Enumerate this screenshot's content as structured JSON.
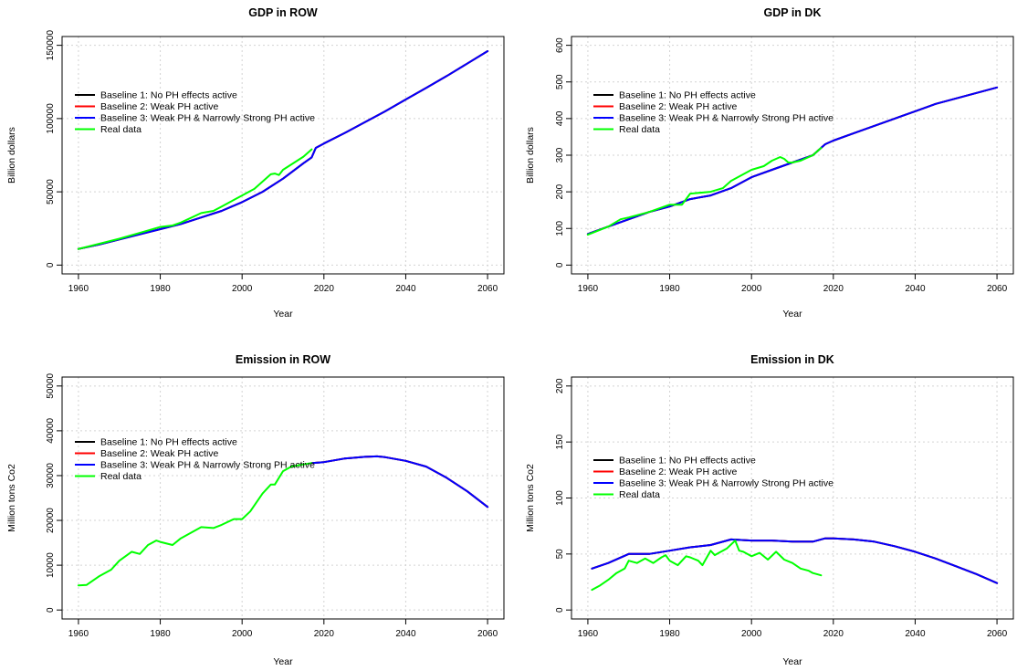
{
  "legend": {
    "entries": [
      {
        "label": "Baseline 1: No PH effects active",
        "color": "#000000"
      },
      {
        "label": "Baseline 2: Weak PH active",
        "color": "#ff0000"
      },
      {
        "label": "Baseline 3: Weak PH & Narrowly Strong PH active",
        "color": "#0000ff"
      },
      {
        "label": "Real data",
        "color": "#00ff00"
      }
    ]
  },
  "chart_data": [
    {
      "type": "line",
      "title": "GDP in ROW",
      "xlabel": "Year",
      "ylabel": "Billion dollars",
      "xlim": [
        1960,
        2060
      ],
      "ylim": [
        0,
        150000
      ],
      "xticks": [
        1960,
        1980,
        2000,
        2020,
        2040,
        2060
      ],
      "yticks": [
        0,
        50000,
        100000,
        150000
      ],
      "grid": true,
      "legend_position": "top-left",
      "series": [
        {
          "name": "Baseline 1: No PH effects active",
          "color": "#000000",
          "x": [
            1960,
            1965,
            1970,
            1975,
            1980,
            1985,
            1990,
            1995,
            2000,
            2005,
            2010,
            2015,
            2017,
            2018,
            2020,
            2025,
            2030,
            2035,
            2040,
            2045,
            2050,
            2055,
            2060
          ],
          "y": [
            11000,
            14000,
            17500,
            21000,
            24500,
            28000,
            32500,
            37000,
            43000,
            50000,
            59000,
            69500,
            73500,
            80000,
            83000,
            90000,
            97500,
            105000,
            113000,
            121000,
            129000,
            137500,
            146000
          ]
        },
        {
          "name": "Baseline 2: Weak PH active",
          "color": "#ff0000",
          "x": [
            1960,
            1965,
            1970,
            1975,
            1980,
            1985,
            1990,
            1995,
            2000,
            2005,
            2010,
            2015,
            2017,
            2018,
            2020,
            2025,
            2030,
            2035,
            2040,
            2045,
            2050,
            2055,
            2060
          ],
          "y": [
            11000,
            14000,
            17500,
            21000,
            24500,
            28000,
            32500,
            37000,
            43000,
            50000,
            59000,
            69500,
            73500,
            80000,
            83000,
            90000,
            97500,
            105000,
            113000,
            121000,
            129000,
            137500,
            146000
          ]
        },
        {
          "name": "Baseline 3: Weak PH & Narrowly Strong PH active",
          "color": "#0000ff",
          "x": [
            1960,
            1965,
            1970,
            1975,
            1980,
            1985,
            1990,
            1995,
            2000,
            2005,
            2010,
            2015,
            2017,
            2018,
            2020,
            2025,
            2030,
            2035,
            2040,
            2045,
            2050,
            2055,
            2060
          ],
          "y": [
            11000,
            14000,
            17500,
            21000,
            24500,
            28000,
            32500,
            37000,
            43000,
            50000,
            59000,
            69500,
            73500,
            80000,
            83000,
            90000,
            97500,
            105000,
            113000,
            121000,
            129000,
            137500,
            146000
          ]
        },
        {
          "name": "Real data",
          "color": "#00ff00",
          "x": [
            1960,
            1965,
            1970,
            1975,
            1980,
            1983,
            1985,
            1990,
            1993,
            1995,
            2000,
            2003,
            2005,
            2007,
            2008,
            2009,
            2010,
            2015,
            2017
          ],
          "y": [
            11000,
            14500,
            18000,
            22000,
            26000,
            27000,
            29000,
            35500,
            37000,
            40000,
            47500,
            52000,
            57000,
            62000,
            62500,
            61500,
            65000,
            74000,
            79000
          ]
        }
      ]
    },
    {
      "type": "line",
      "title": "GDP in DK",
      "xlabel": "Year",
      "ylabel": "Billion dollars",
      "xlim": [
        1960,
        2060
      ],
      "ylim": [
        0,
        600
      ],
      "xticks": [
        1960,
        1980,
        2000,
        2020,
        2040,
        2060
      ],
      "yticks": [
        0,
        100,
        200,
        300,
        400,
        500,
        600
      ],
      "grid": true,
      "legend_position": "top-left",
      "series": [
        {
          "name": "Baseline 1: No PH effects active",
          "color": "#000000",
          "x": [
            1960,
            1965,
            1970,
            1975,
            1980,
            1985,
            1990,
            1995,
            2000,
            2005,
            2010,
            2015,
            2018,
            2020,
            2025,
            2030,
            2035,
            2040,
            2045,
            2050,
            2055,
            2060
          ],
          "y": [
            85,
            105,
            125,
            145,
            160,
            180,
            190,
            210,
            240,
            260,
            280,
            300,
            330,
            340,
            360,
            380,
            400,
            420,
            440,
            455,
            470,
            485
          ]
        },
        {
          "name": "Baseline 2: Weak PH active",
          "color": "#ff0000",
          "x": [
            1960,
            1965,
            1970,
            1975,
            1980,
            1985,
            1990,
            1995,
            2000,
            2005,
            2010,
            2015,
            2018,
            2020,
            2025,
            2030,
            2035,
            2040,
            2045,
            2050,
            2055,
            2060
          ],
          "y": [
            85,
            105,
            125,
            145,
            160,
            180,
            190,
            210,
            240,
            260,
            280,
            300,
            330,
            340,
            360,
            380,
            400,
            420,
            440,
            455,
            470,
            485
          ]
        },
        {
          "name": "Baseline 3: Weak PH & Narrowly Strong PH active",
          "color": "#0000ff",
          "x": [
            1960,
            1965,
            1970,
            1975,
            1980,
            1985,
            1990,
            1995,
            2000,
            2005,
            2010,
            2015,
            2018,
            2020,
            2025,
            2030,
            2035,
            2040,
            2045,
            2050,
            2055,
            2060
          ],
          "y": [
            85,
            105,
            125,
            145,
            160,
            180,
            190,
            210,
            240,
            260,
            280,
            300,
            330,
            340,
            360,
            380,
            400,
            420,
            440,
            455,
            470,
            485
          ]
        },
        {
          "name": "Real data",
          "color": "#00ff00",
          "x": [
            1960,
            1965,
            1968,
            1970,
            1975,
            1980,
            1983,
            1985,
            1990,
            1993,
            1995,
            2000,
            2003,
            2005,
            2007,
            2008,
            2009,
            2010,
            2012,
            2015,
            2017
          ],
          "y": [
            83,
            105,
            125,
            130,
            145,
            165,
            165,
            195,
            200,
            210,
            230,
            260,
            270,
            285,
            295,
            290,
            280,
            280,
            285,
            300,
            320
          ]
        }
      ]
    },
    {
      "type": "line",
      "title": "Emission in ROW",
      "xlabel": "Year",
      "ylabel": "Million tons Co2",
      "xlim": [
        1960,
        2060
      ],
      "ylim": [
        0,
        50000
      ],
      "xticks": [
        1960,
        1980,
        2000,
        2020,
        2040,
        2060
      ],
      "yticks": [
        0,
        10000,
        20000,
        30000,
        40000,
        50000
      ],
      "grid": true,
      "legend_position": "top-left",
      "series": [
        {
          "name": "Baseline 1: No PH effects active",
          "color": "#000000",
          "x": [
            2017,
            2020,
            2025,
            2030,
            2033,
            2035,
            2040,
            2045,
            2050,
            2055,
            2060
          ],
          "y": [
            32800,
            33000,
            33800,
            34200,
            34300,
            34100,
            33300,
            32000,
            29500,
            26500,
            23000
          ]
        },
        {
          "name": "Baseline 2: Weak PH active",
          "color": "#ff0000",
          "x": [
            2017,
            2020,
            2025,
            2030,
            2033,
            2035,
            2040,
            2045,
            2050,
            2055,
            2060
          ],
          "y": [
            32800,
            33000,
            33800,
            34200,
            34300,
            34100,
            33300,
            32000,
            29500,
            26500,
            23000
          ]
        },
        {
          "name": "Baseline 3: Weak PH & Narrowly Strong PH active",
          "color": "#0000ff",
          "x": [
            2017,
            2020,
            2025,
            2030,
            2033,
            2035,
            2040,
            2045,
            2050,
            2055,
            2060
          ],
          "y": [
            32800,
            33000,
            33800,
            34200,
            34300,
            34100,
            33300,
            32000,
            29500,
            26500,
            23000
          ]
        },
        {
          "name": "Real data",
          "color": "#00ff00",
          "x": [
            1960,
            1962,
            1965,
            1968,
            1970,
            1973,
            1975,
            1977,
            1979,
            1980,
            1983,
            1985,
            1990,
            1993,
            1995,
            1998,
            2000,
            2002,
            2005,
            2007,
            2008,
            2010,
            2012,
            2015,
            2017
          ],
          "y": [
            5500,
            5600,
            7500,
            9000,
            11000,
            13000,
            12500,
            14500,
            15500,
            15200,
            14500,
            16000,
            18500,
            18300,
            19000,
            20300,
            20300,
            22000,
            26000,
            28000,
            28000,
            31000,
            32000,
            32500,
            32800
          ]
        }
      ]
    },
    {
      "type": "line",
      "title": "Emission in DK",
      "xlabel": "Year",
      "ylabel": "Million tons Co2",
      "xlim": [
        1960,
        2060
      ],
      "ylim": [
        0,
        200
      ],
      "xticks": [
        1960,
        1980,
        2000,
        2020,
        2040,
        2060
      ],
      "yticks": [
        0,
        50,
        100,
        150,
        200
      ],
      "grid": true,
      "legend_position": "top-left",
      "series": [
        {
          "name": "Baseline 1: No PH effects active",
          "color": "#000000",
          "x": [
            1961,
            1965,
            1970,
            1975,
            1980,
            1985,
            1990,
            1995,
            2000,
            2005,
            2010,
            2015,
            2018,
            2020,
            2025,
            2030,
            2035,
            2040,
            2045,
            2050,
            2055,
            2060
          ],
          "y": [
            37,
            42,
            50,
            50,
            53,
            56,
            58,
            63,
            62,
            62,
            61,
            61,
            64,
            64,
            63,
            61,
            57,
            52,
            46,
            39,
            32,
            24
          ]
        },
        {
          "name": "Baseline 2: Weak PH active",
          "color": "#ff0000",
          "x": [
            1961,
            1965,
            1970,
            1975,
            1980,
            1985,
            1990,
            1995,
            2000,
            2005,
            2010,
            2015,
            2018,
            2020,
            2025,
            2030,
            2035,
            2040,
            2045,
            2050,
            2055,
            2060
          ],
          "y": [
            37,
            42,
            50,
            50,
            53,
            56,
            58,
            63,
            62,
            62,
            61,
            61,
            64,
            64,
            63,
            61,
            57,
            52,
            46,
            39,
            32,
            24
          ]
        },
        {
          "name": "Baseline 3: Weak PH & Narrowly Strong PH active",
          "color": "#0000ff",
          "x": [
            1961,
            1965,
            1970,
            1975,
            1980,
            1985,
            1990,
            1995,
            2000,
            2005,
            2010,
            2015,
            2018,
            2020,
            2025,
            2030,
            2035,
            2040,
            2045,
            2050,
            2055,
            2060
          ],
          "y": [
            37,
            42,
            50,
            50,
            53,
            56,
            58,
            63,
            62,
            62,
            61,
            61,
            64,
            64,
            63,
            61,
            57,
            52,
            46,
            39,
            32,
            24
          ]
        },
        {
          "name": "Real data",
          "color": "#00ff00",
          "x": [
            1961,
            1963,
            1965,
            1967,
            1969,
            1970,
            1972,
            1974,
            1976,
            1978,
            1979,
            1980,
            1982,
            1984,
            1985,
            1987,
            1988,
            1990,
            1991,
            1992,
            1994,
            1996,
            1997,
            1998,
            2000,
            2002,
            2004,
            2006,
            2008,
            2010,
            2012,
            2014,
            2015,
            2017
          ],
          "y": [
            18,
            22,
            27,
            33,
            37,
            44,
            42,
            46,
            42,
            47,
            49,
            44,
            40,
            48,
            47,
            44,
            40,
            53,
            49,
            51,
            55,
            62,
            53,
            52,
            48,
            51,
            45,
            52,
            45,
            42,
            37,
            35,
            33,
            31
          ]
        }
      ]
    }
  ]
}
